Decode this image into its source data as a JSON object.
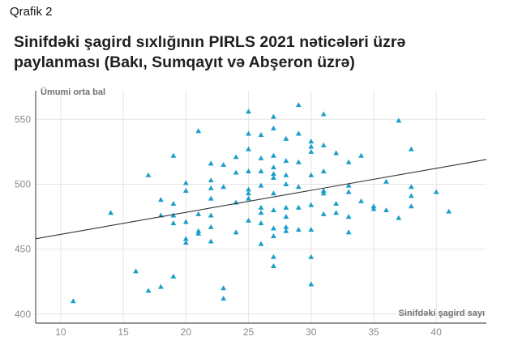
{
  "caption": "Qrafik 2",
  "chart_data": {
    "type": "scatter",
    "title": "Sinifdəki şagird sıxlığının PIRLS 2021 nəticələri üzrə paylanması (Bakı, Sumqayıt və Abşeron üzrə)",
    "xlabel": "Sinifdəki şagird sayı",
    "ylabel": "Ümumi orta bal",
    "xlim": [
      8,
      44
    ],
    "ylim": [
      393,
      572
    ],
    "x_ticks": [
      10,
      15,
      20,
      25,
      30,
      35,
      40
    ],
    "y_ticks": [
      400,
      450,
      500,
      550
    ],
    "grid": true,
    "marker": "triangle",
    "marker_color": "#1a9ec9",
    "trend_line": {
      "x": [
        8,
        44
      ],
      "y": [
        458,
        519
      ]
    },
    "points": [
      {
        "x": 11,
        "y": 410
      },
      {
        "x": 14,
        "y": 478
      },
      {
        "x": 16,
        "y": 433
      },
      {
        "x": 17,
        "y": 507
      },
      {
        "x": 17,
        "y": 418
      },
      {
        "x": 18,
        "y": 488
      },
      {
        "x": 18,
        "y": 476
      },
      {
        "x": 18,
        "y": 421
      },
      {
        "x": 19,
        "y": 522
      },
      {
        "x": 19,
        "y": 485
      },
      {
        "x": 19,
        "y": 476
      },
      {
        "x": 19,
        "y": 470
      },
      {
        "x": 19,
        "y": 429
      },
      {
        "x": 20,
        "y": 501
      },
      {
        "x": 20,
        "y": 495
      },
      {
        "x": 20,
        "y": 471
      },
      {
        "x": 20,
        "y": 458
      },
      {
        "x": 20,
        "y": 455
      },
      {
        "x": 21,
        "y": 541
      },
      {
        "x": 21,
        "y": 477
      },
      {
        "x": 21,
        "y": 464
      },
      {
        "x": 21,
        "y": 462
      },
      {
        "x": 22,
        "y": 516
      },
      {
        "x": 22,
        "y": 503
      },
      {
        "x": 22,
        "y": 497
      },
      {
        "x": 22,
        "y": 489
      },
      {
        "x": 22,
        "y": 476
      },
      {
        "x": 22,
        "y": 467
      },
      {
        "x": 22,
        "y": 456
      },
      {
        "x": 23,
        "y": 515
      },
      {
        "x": 23,
        "y": 498
      },
      {
        "x": 23,
        "y": 420
      },
      {
        "x": 23,
        "y": 412
      },
      {
        "x": 24,
        "y": 521
      },
      {
        "x": 24,
        "y": 509
      },
      {
        "x": 24,
        "y": 486
      },
      {
        "x": 24,
        "y": 463
      },
      {
        "x": 25,
        "y": 556
      },
      {
        "x": 25,
        "y": 539
      },
      {
        "x": 25,
        "y": 527
      },
      {
        "x": 25,
        "y": 510
      },
      {
        "x": 25,
        "y": 496
      },
      {
        "x": 25,
        "y": 493
      },
      {
        "x": 25,
        "y": 489
      },
      {
        "x": 25,
        "y": 472
      },
      {
        "x": 26,
        "y": 538
      },
      {
        "x": 26,
        "y": 520
      },
      {
        "x": 26,
        "y": 510
      },
      {
        "x": 26,
        "y": 499
      },
      {
        "x": 26,
        "y": 482
      },
      {
        "x": 26,
        "y": 478
      },
      {
        "x": 26,
        "y": 470
      },
      {
        "x": 26,
        "y": 454
      },
      {
        "x": 27,
        "y": 552
      },
      {
        "x": 27,
        "y": 543
      },
      {
        "x": 27,
        "y": 522
      },
      {
        "x": 27,
        "y": 513
      },
      {
        "x": 27,
        "y": 508
      },
      {
        "x": 27,
        "y": 505
      },
      {
        "x": 27,
        "y": 493
      },
      {
        "x": 27,
        "y": 480
      },
      {
        "x": 27,
        "y": 466
      },
      {
        "x": 27,
        "y": 460
      },
      {
        "x": 27,
        "y": 444
      },
      {
        "x": 27,
        "y": 437
      },
      {
        "x": 28,
        "y": 535
      },
      {
        "x": 28,
        "y": 518
      },
      {
        "x": 28,
        "y": 507
      },
      {
        "x": 28,
        "y": 500
      },
      {
        "x": 28,
        "y": 482
      },
      {
        "x": 28,
        "y": 475
      },
      {
        "x": 28,
        "y": 467
      },
      {
        "x": 28,
        "y": 464
      },
      {
        "x": 29,
        "y": 561
      },
      {
        "x": 29,
        "y": 539
      },
      {
        "x": 29,
        "y": 517
      },
      {
        "x": 29,
        "y": 498
      },
      {
        "x": 29,
        "y": 482
      },
      {
        "x": 29,
        "y": 465
      },
      {
        "x": 30,
        "y": 533
      },
      {
        "x": 30,
        "y": 529
      },
      {
        "x": 30,
        "y": 525
      },
      {
        "x": 30,
        "y": 507
      },
      {
        "x": 30,
        "y": 484
      },
      {
        "x": 30,
        "y": 465
      },
      {
        "x": 30,
        "y": 444
      },
      {
        "x": 30,
        "y": 423
      },
      {
        "x": 31,
        "y": 554
      },
      {
        "x": 31,
        "y": 530
      },
      {
        "x": 31,
        "y": 510
      },
      {
        "x": 31,
        "y": 495
      },
      {
        "x": 31,
        "y": 493
      },
      {
        "x": 31,
        "y": 477
      },
      {
        "x": 32,
        "y": 524
      },
      {
        "x": 32,
        "y": 485
      },
      {
        "x": 32,
        "y": 478
      },
      {
        "x": 33,
        "y": 517
      },
      {
        "x": 33,
        "y": 499
      },
      {
        "x": 33,
        "y": 494
      },
      {
        "x": 33,
        "y": 475
      },
      {
        "x": 33,
        "y": 463
      },
      {
        "x": 34,
        "y": 522
      },
      {
        "x": 34,
        "y": 487
      },
      {
        "x": 35,
        "y": 483
      },
      {
        "x": 35,
        "y": 481
      },
      {
        "x": 36,
        "y": 502
      },
      {
        "x": 36,
        "y": 480
      },
      {
        "x": 37,
        "y": 549
      },
      {
        "x": 37,
        "y": 474
      },
      {
        "x": 38,
        "y": 527
      },
      {
        "x": 38,
        "y": 498
      },
      {
        "x": 38,
        "y": 491
      },
      {
        "x": 38,
        "y": 483
      },
      {
        "x": 40,
        "y": 494
      },
      {
        "x": 41,
        "y": 479
      }
    ]
  }
}
